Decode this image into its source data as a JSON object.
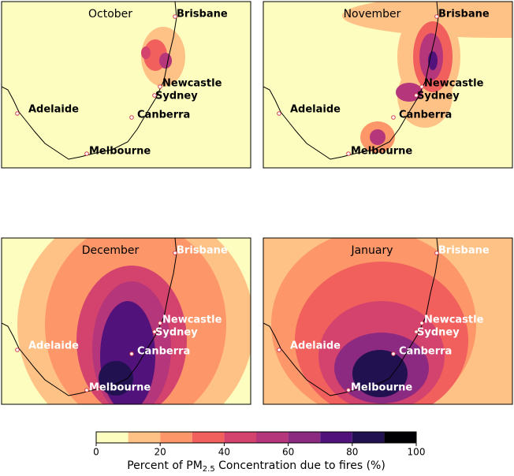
{
  "panels": [
    {
      "title": "October",
      "label_color": "#000000"
    },
    {
      "title": "November",
      "label_color": "#000000"
    },
    {
      "title": "December",
      "label_color": "#ffffff"
    },
    {
      "title": "January",
      "label_color": "#ffffff"
    }
  ],
  "cities": [
    {
      "name": "Brisbane"
    },
    {
      "name": "Newcastle"
    },
    {
      "name": "Sydney"
    },
    {
      "name": "Canberra"
    },
    {
      "name": "Melbourne"
    },
    {
      "name": "Adelaide"
    }
  ],
  "colorbar": {
    "bounds": [
      0,
      10,
      20,
      30,
      40,
      50,
      60,
      70,
      80,
      90,
      100
    ],
    "colors": [
      "#fcfdbf",
      "#fec287",
      "#fd9668",
      "#f1605d",
      "#d3436e",
      "#b5367a",
      "#8c2981",
      "#51127c",
      "#221150",
      "#000004"
    ],
    "ticks": [
      0,
      20,
      40,
      60,
      80,
      100
    ],
    "label_before": "Percent of PM",
    "label_sub": "2.5",
    "label_after": " Concentration due to fires (%)"
  }
}
